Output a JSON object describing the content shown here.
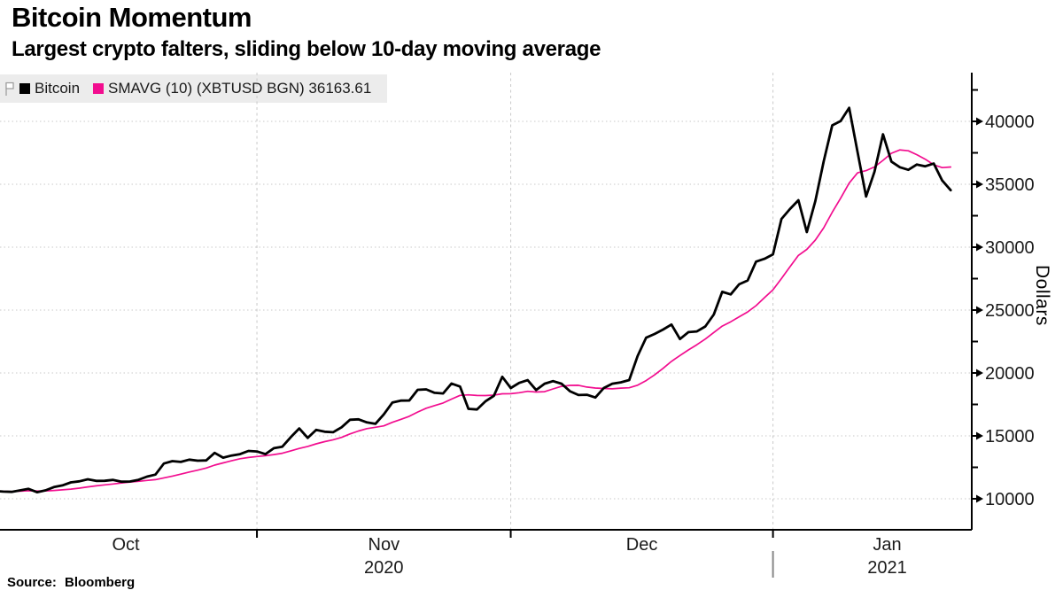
{
  "header": {
    "title": "Bitcoin Momentum",
    "subtitle": "Largest crypto falters, sliding below 10-day moving average"
  },
  "source": "Source: Bloomberg",
  "legend": {
    "items": [
      {
        "label": "Bitcoin",
        "color": "#000000"
      },
      {
        "label": "SMAVG (10) (XBTUSD BGN) 36163.61",
        "color": "#f20d8f"
      }
    ],
    "flag_icon": "chart-flag-icon",
    "background": "#ececec"
  },
  "chart_data": {
    "type": "line",
    "title": "Bitcoin Momentum",
    "subtitle": "Largest crypto falters, sliding below 10-day moving average",
    "ylabel": "Dollars",
    "legend_position": "top-left",
    "y_axis": {
      "side": "right",
      "range_shown": [
        7500,
        43500
      ],
      "major_ticks": [
        10000,
        15000,
        20000,
        25000,
        30000,
        35000,
        40000
      ],
      "minor_ticks": [
        12500,
        17500,
        22500,
        27500,
        32500,
        37500,
        42500
      ],
      "grid": "dotted"
    },
    "x_axis": {
      "start_date": "2020-10-01",
      "end_date": "2021-01-22",
      "months": [
        {
          "label": "Oct",
          "start_day": 0,
          "label_center_day": 15.5
        },
        {
          "label": "Nov",
          "start_day": 31,
          "label_center_day": 46
        },
        {
          "label": "Dec",
          "start_day": 61,
          "label_center_day": 76.5
        },
        {
          "label": "Jan",
          "start_day": 92,
          "label_center_day": 105.5
        }
      ],
      "years": [
        {
          "label": "2020",
          "center_day": 46
        },
        {
          "label": "2021",
          "center_day": 105.5
        }
      ],
      "year_divider_day": 92,
      "grid": "dashed"
    },
    "series": [
      {
        "name": "Bitcoin",
        "color": "#000000",
        "width": 2.8,
        "values": [
          10620,
          10570,
          10550,
          10670,
          10790,
          10520,
          10670,
          10930,
          11060,
          11300,
          11390,
          11550,
          11420,
          11430,
          11500,
          11360,
          11370,
          11510,
          11760,
          11920,
          12800,
          12990,
          12930,
          13110,
          13030,
          13050,
          13650,
          13270,
          13440,
          13550,
          13800,
          13760,
          13550,
          14020,
          14140,
          14900,
          15590,
          14840,
          15480,
          15330,
          15290,
          15680,
          16280,
          16320,
          16070,
          15960,
          16710,
          17650,
          17800,
          17810,
          18660,
          18700,
          18420,
          18370,
          19160,
          18920,
          17150,
          17100,
          17740,
          18180,
          19700,
          18800,
          19210,
          19430,
          18650,
          19150,
          19350,
          19150,
          18550,
          18250,
          18270,
          18050,
          18800,
          19150,
          19250,
          19440,
          21350,
          22800,
          23100,
          23450,
          23850,
          22700,
          23250,
          23300,
          23700,
          24650,
          26450,
          26250,
          27050,
          27350,
          28850,
          29080,
          29430,
          32250,
          33030,
          33730,
          31200,
          33660,
          36840,
          39680,
          40030,
          41080,
          37550,
          34030,
          36000,
          38970,
          36800,
          36350,
          36150,
          36570,
          36430,
          36650,
          35300,
          34530
        ]
      },
      {
        "name": "SMAVG (10) (XBTUSD BGN)",
        "color": "#f20d8f",
        "width": 1.7,
        "derived": {
          "method": "sma",
          "window": 10,
          "of": "Bitcoin"
        },
        "last_value": 36163.61
      }
    ]
  }
}
